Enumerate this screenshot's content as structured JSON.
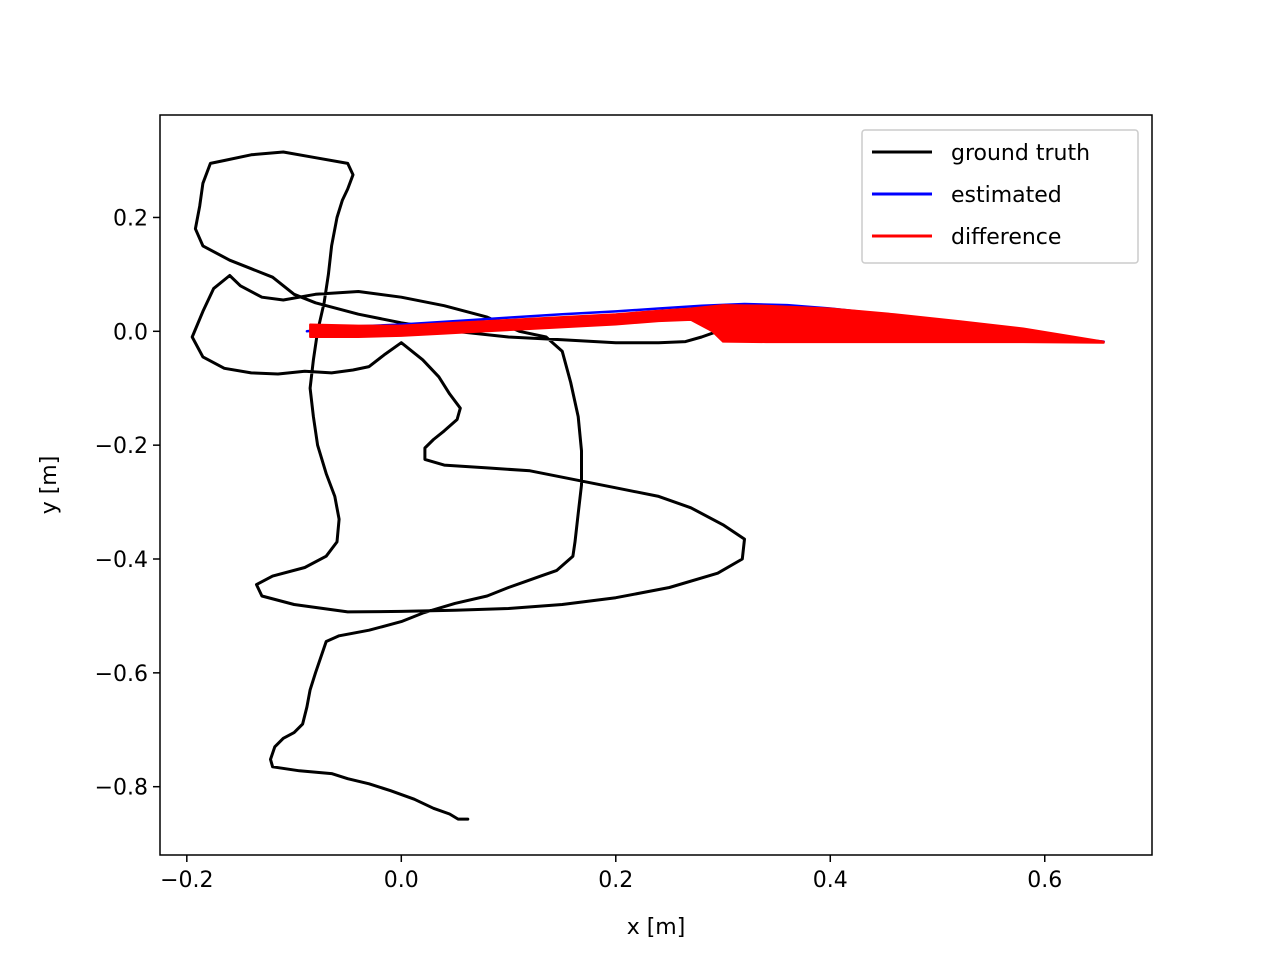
{
  "chart_data": {
    "type": "line",
    "title": "",
    "xlabel": "x [m]",
    "ylabel": "y [m]",
    "xlim": [
      -0.225,
      0.7
    ],
    "ylim": [
      -0.92,
      0.38
    ],
    "xticks": [
      -0.2,
      0.0,
      0.2,
      0.4,
      0.6
    ],
    "xtick_labels": [
      "−0.2",
      "0.0",
      "0.2",
      "0.4",
      "0.6"
    ],
    "yticks": [
      -0.8,
      -0.6,
      -0.4,
      -0.2,
      0.0,
      0.2
    ],
    "ytick_labels": [
      "−0.8",
      "−0.6",
      "−0.4",
      "−0.2",
      "0.0",
      "0.2"
    ],
    "grid": false,
    "legend_position": "upper right",
    "series": [
      {
        "name": "ground truth",
        "color": "#000000",
        "points": [
          [
            0.062,
            -0.857
          ],
          [
            0.053,
            -0.857
          ],
          [
            0.045,
            -0.848
          ],
          [
            0.03,
            -0.838
          ],
          [
            0.012,
            -0.822
          ],
          [
            -0.01,
            -0.807
          ],
          [
            -0.03,
            -0.795
          ],
          [
            -0.05,
            -0.786
          ],
          [
            -0.065,
            -0.777
          ],
          [
            -0.095,
            -0.772
          ],
          [
            -0.12,
            -0.765
          ],
          [
            -0.122,
            -0.752
          ],
          [
            -0.118,
            -0.73
          ],
          [
            -0.11,
            -0.715
          ],
          [
            -0.1,
            -0.705
          ],
          [
            -0.092,
            -0.69
          ],
          [
            -0.088,
            -0.66
          ],
          [
            -0.085,
            -0.63
          ],
          [
            -0.08,
            -0.6
          ],
          [
            -0.07,
            -0.545
          ],
          [
            -0.058,
            -0.535
          ],
          [
            -0.03,
            -0.525
          ],
          [
            0.0,
            -0.51
          ],
          [
            0.02,
            -0.495
          ],
          [
            0.05,
            -0.478
          ],
          [
            0.08,
            -0.465
          ],
          [
            0.1,
            -0.45
          ],
          [
            0.115,
            -0.44
          ],
          [
            0.13,
            -0.43
          ],
          [
            0.145,
            -0.42
          ],
          [
            0.16,
            -0.395
          ],
          [
            0.162,
            -0.37
          ],
          [
            0.165,
            -0.32
          ],
          [
            0.168,
            -0.27
          ],
          [
            0.168,
            -0.21
          ],
          [
            0.165,
            -0.15
          ],
          [
            0.158,
            -0.09
          ],
          [
            0.15,
            -0.035
          ],
          [
            0.135,
            -0.01
          ],
          [
            0.11,
            0.0
          ],
          [
            0.08,
            0.025
          ],
          [
            0.04,
            0.045
          ],
          [
            0.0,
            0.06
          ],
          [
            -0.04,
            0.07
          ],
          [
            -0.08,
            0.065
          ],
          [
            -0.11,
            0.055
          ],
          [
            -0.13,
            0.06
          ],
          [
            -0.15,
            0.08
          ],
          [
            -0.16,
            0.098
          ],
          [
            -0.175,
            0.075
          ],
          [
            -0.185,
            0.035
          ],
          [
            -0.195,
            -0.01
          ],
          [
            -0.185,
            -0.045
          ],
          [
            -0.165,
            -0.065
          ],
          [
            -0.14,
            -0.073
          ],
          [
            -0.115,
            -0.075
          ],
          [
            -0.09,
            -0.07
          ],
          [
            -0.065,
            -0.073
          ],
          [
            -0.045,
            -0.068
          ],
          [
            -0.03,
            -0.062
          ],
          [
            -0.015,
            -0.04
          ],
          [
            0.0,
            -0.02
          ],
          [
            0.02,
            -0.05
          ],
          [
            0.035,
            -0.08
          ],
          [
            0.045,
            -0.11
          ],
          [
            0.055,
            -0.135
          ],
          [
            0.052,
            -0.155
          ],
          [
            0.04,
            -0.175
          ],
          [
            0.03,
            -0.19
          ],
          [
            0.022,
            -0.205
          ],
          [
            0.022,
            -0.225
          ],
          [
            0.04,
            -0.235
          ],
          [
            0.08,
            -0.24
          ],
          [
            0.12,
            -0.245
          ],
          [
            0.16,
            -0.26
          ],
          [
            0.2,
            -0.275
          ],
          [
            0.24,
            -0.29
          ],
          [
            0.27,
            -0.31
          ],
          [
            0.3,
            -0.34
          ],
          [
            0.32,
            -0.365
          ],
          [
            0.318,
            -0.4
          ],
          [
            0.295,
            -0.425
          ],
          [
            0.25,
            -0.45
          ],
          [
            0.2,
            -0.468
          ],
          [
            0.15,
            -0.48
          ],
          [
            0.1,
            -0.487
          ],
          [
            0.05,
            -0.49
          ],
          [
            0.0,
            -0.492
          ],
          [
            -0.05,
            -0.493
          ],
          [
            -0.1,
            -0.48
          ],
          [
            -0.13,
            -0.465
          ],
          [
            -0.135,
            -0.445
          ],
          [
            -0.12,
            -0.43
          ],
          [
            -0.09,
            -0.415
          ],
          [
            -0.07,
            -0.395
          ],
          [
            -0.06,
            -0.37
          ],
          [
            -0.058,
            -0.33
          ],
          [
            -0.062,
            -0.29
          ],
          [
            -0.07,
            -0.25
          ],
          [
            -0.078,
            -0.2
          ],
          [
            -0.082,
            -0.15
          ],
          [
            -0.085,
            -0.1
          ],
          [
            -0.082,
            -0.05
          ],
          [
            -0.078,
            0.0
          ],
          [
            -0.072,
            0.05
          ],
          [
            -0.068,
            0.1
          ],
          [
            -0.065,
            0.15
          ],
          [
            -0.06,
            0.2
          ],
          [
            -0.055,
            0.23
          ],
          [
            -0.05,
            0.25
          ],
          [
            -0.045,
            0.275
          ],
          [
            -0.05,
            0.295
          ],
          [
            -0.08,
            0.305
          ],
          [
            -0.11,
            0.315
          ],
          [
            -0.14,
            0.31
          ],
          [
            -0.165,
            0.3
          ],
          [
            -0.178,
            0.295
          ],
          [
            -0.185,
            0.26
          ],
          [
            -0.188,
            0.22
          ],
          [
            -0.192,
            0.18
          ],
          [
            -0.185,
            0.15
          ],
          [
            -0.16,
            0.125
          ],
          [
            -0.14,
            0.11
          ],
          [
            -0.12,
            0.095
          ],
          [
            -0.1,
            0.065
          ],
          [
            -0.08,
            0.05
          ],
          [
            -0.04,
            0.03
          ],
          [
            0.0,
            0.015
          ],
          [
            0.05,
            0.0
          ],
          [
            0.1,
            -0.01
          ],
          [
            0.15,
            -0.015
          ],
          [
            0.2,
            -0.02
          ],
          [
            0.24,
            -0.02
          ],
          [
            0.265,
            -0.018
          ],
          [
            0.28,
            -0.01
          ],
          [
            0.295,
            0.0
          ],
          [
            0.298,
            0.008
          ]
        ]
      },
      {
        "name": "estimated",
        "color": "#0000ff",
        "points": [
          [
            -0.088,
            0.0
          ],
          [
            -0.05,
            0.008
          ],
          [
            0.0,
            0.012
          ],
          [
            0.05,
            0.018
          ],
          [
            0.1,
            0.024
          ],
          [
            0.15,
            0.03
          ],
          [
            0.2,
            0.035
          ],
          [
            0.24,
            0.04
          ],
          [
            0.28,
            0.045
          ],
          [
            0.32,
            0.048
          ],
          [
            0.36,
            0.046
          ],
          [
            0.4,
            0.04
          ],
          [
            0.45,
            0.03
          ],
          [
            0.5,
            0.018
          ],
          [
            0.55,
            0.005
          ],
          [
            0.6,
            -0.008
          ],
          [
            0.655,
            -0.018
          ]
        ]
      },
      {
        "name": "difference",
        "color": "#ff0000",
        "bands": [
          {
            "x": [
              -0.085,
              -0.04,
              0.0,
              0.04,
              0.08,
              0.12,
              0.16,
              0.2,
              0.24,
              0.27,
              0.29,
              0.3,
              0.34,
              0.4,
              0.46,
              0.52,
              0.58,
              0.655
            ],
            "upper": [
              0.012,
              0.01,
              0.01,
              0.014,
              0.018,
              0.022,
              0.026,
              0.03,
              0.036,
              0.04,
              0.044,
              0.046,
              0.045,
              0.04,
              0.03,
              0.018,
              0.005,
              -0.018
            ],
            "lower": [
              -0.01,
              -0.01,
              -0.008,
              -0.004,
              0.0,
              0.004,
              0.008,
              0.012,
              0.018,
              0.02,
              0.0,
              -0.018,
              -0.019,
              -0.019,
              -0.019,
              -0.019,
              -0.019,
              -0.02
            ]
          }
        ]
      }
    ]
  }
}
